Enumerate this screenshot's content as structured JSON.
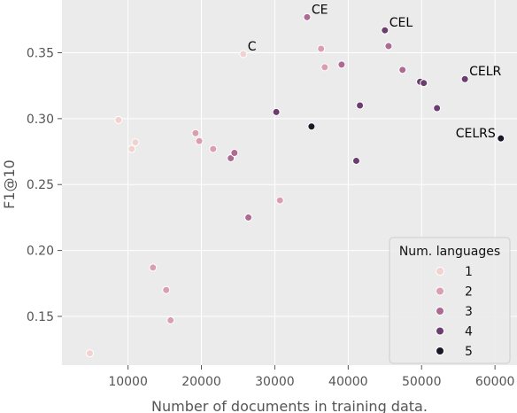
{
  "chart_data": {
    "type": "scatter",
    "xlabel": "Number of documents in training data.",
    "ylabel": "F1@10",
    "xlim": [
      1000,
      63000
    ],
    "ylim": [
      0.113,
      0.39
    ],
    "x_ticks": [
      10000,
      20000,
      30000,
      40000,
      50000,
      60000
    ],
    "x_tick_labels": [
      "10000",
      "20000",
      "30000",
      "40000",
      "50000",
      "60000"
    ],
    "y_ticks": [
      0.15,
      0.2,
      0.25,
      0.3,
      0.35
    ],
    "y_tick_labels": [
      "0.15",
      "0.20",
      "0.25",
      "0.30",
      "0.35"
    ],
    "grid": true,
    "background": "#ebebeb",
    "hue_title": "Num. languages",
    "legend_position": "lower right",
    "hue_colors": {
      "1": "#f2d2cf",
      "2": "#d99faf",
      "3": "#ad6a93",
      "4": "#6c3d6f",
      "5": "#1c1726"
    },
    "legend": [
      {
        "label": "1",
        "level": 1
      },
      {
        "label": "2",
        "level": 2
      },
      {
        "label": "3",
        "level": 3
      },
      {
        "label": "4",
        "level": 4
      },
      {
        "label": "5",
        "level": 5
      }
    ],
    "points": [
      {
        "x": 4800,
        "y": 0.122,
        "n": 1
      },
      {
        "x": 8700,
        "y": 0.299,
        "n": 1
      },
      {
        "x": 10500,
        "y": 0.277,
        "n": 1
      },
      {
        "x": 11000,
        "y": 0.282,
        "n": 1
      },
      {
        "x": 25700,
        "y": 0.349,
        "n": 1,
        "label": "C"
      },
      {
        "x": 13400,
        "y": 0.187,
        "n": 2
      },
      {
        "x": 15200,
        "y": 0.17,
        "n": 2
      },
      {
        "x": 15800,
        "y": 0.147,
        "n": 2
      },
      {
        "x": 19200,
        "y": 0.289,
        "n": 2
      },
      {
        "x": 19700,
        "y": 0.283,
        "n": 2
      },
      {
        "x": 21600,
        "y": 0.277,
        "n": 2
      },
      {
        "x": 30700,
        "y": 0.238,
        "n": 2
      },
      {
        "x": 36300,
        "y": 0.353,
        "n": 2
      },
      {
        "x": 36800,
        "y": 0.339,
        "n": 2
      },
      {
        "x": 24000,
        "y": 0.27,
        "n": 3
      },
      {
        "x": 24500,
        "y": 0.274,
        "n": 3
      },
      {
        "x": 26400,
        "y": 0.225,
        "n": 3
      },
      {
        "x": 34400,
        "y": 0.377,
        "n": 3,
        "label": "CE"
      },
      {
        "x": 39100,
        "y": 0.341,
        "n": 3
      },
      {
        "x": 45500,
        "y": 0.355,
        "n": 3
      },
      {
        "x": 47400,
        "y": 0.337,
        "n": 3
      },
      {
        "x": 30200,
        "y": 0.305,
        "n": 4
      },
      {
        "x": 41600,
        "y": 0.31,
        "n": 4
      },
      {
        "x": 41100,
        "y": 0.268,
        "n": 4
      },
      {
        "x": 45000,
        "y": 0.367,
        "n": 4,
        "label": "CEL"
      },
      {
        "x": 49800,
        "y": 0.328,
        "n": 4
      },
      {
        "x": 50300,
        "y": 0.327,
        "n": 4
      },
      {
        "x": 52100,
        "y": 0.308,
        "n": 4
      },
      {
        "x": 55900,
        "y": 0.33,
        "n": 4,
        "label": "CELR"
      },
      {
        "x": 35000,
        "y": 0.294,
        "n": 5
      },
      {
        "x": 60800,
        "y": 0.285,
        "n": 5,
        "label": "CELRS"
      }
    ]
  }
}
